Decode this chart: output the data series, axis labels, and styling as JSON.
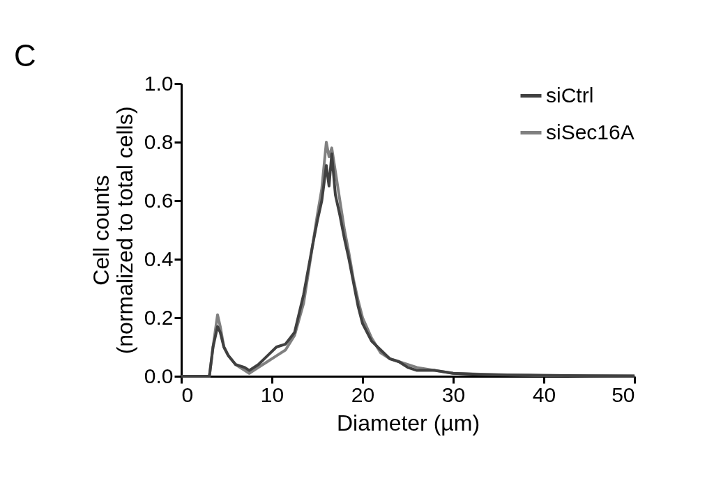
{
  "chart_data": {
    "type": "line",
    "xlabel": "Diameter (µm)",
    "ylabel": "Cell counts (normalized to total cells)",
    "annotations": [
      "C"
    ],
    "xlim": [
      0,
      50
    ],
    "xticks": [
      0,
      10,
      20,
      30,
      40,
      50
    ],
    "ylim": [
      0,
      1.0
    ],
    "yticks": [
      {
        "value": 0,
        "label": "0.0"
      },
      {
        "value": 0.2,
        "label": "0.2"
      },
      {
        "value": 0.4,
        "label": "0.4"
      },
      {
        "value": 0.6,
        "label": "0.6"
      },
      {
        "value": 0.8,
        "label": "0.8"
      },
      {
        "value": 1.0,
        "label": "1.0"
      }
    ],
    "grid": false,
    "legend": "top right",
    "marker": "none",
    "line_style": "solid",
    "series": [
      {
        "name": "siSec16A",
        "color": "#808080",
        "x": [
          0,
          3.1,
          3.5,
          4.0,
          4.3,
          4.7,
          5.2,
          6.0,
          7.0,
          7.5,
          8.5,
          9.5,
          10.5,
          11.5,
          12.5,
          13.5,
          14.5,
          15.0,
          15.5,
          16.0,
          16.3,
          16.6,
          17.0,
          17.5,
          18.0,
          18.5,
          19.0,
          19.5,
          20.0,
          21.0,
          22.0,
          23.0,
          24.0,
          25.0,
          26.0,
          28.0,
          30.0,
          33.0,
          36.0,
          40.0,
          45.0,
          50.0
        ],
        "values": [
          0,
          0,
          0.1,
          0.21,
          0.17,
          0.1,
          0.07,
          0.04,
          0.02,
          0.01,
          0.03,
          0.05,
          0.07,
          0.09,
          0.14,
          0.25,
          0.45,
          0.55,
          0.64,
          0.8,
          0.75,
          0.78,
          0.7,
          0.6,
          0.5,
          0.42,
          0.33,
          0.26,
          0.2,
          0.13,
          0.08,
          0.06,
          0.05,
          0.04,
          0.03,
          0.02,
          0.01,
          0.007,
          0.005,
          0.003,
          0.002,
          0.001
        ]
      },
      {
        "name": "siCtrl",
        "color": "#404040",
        "x": [
          0,
          3.1,
          3.5,
          4.0,
          4.3,
          4.7,
          5.2,
          6.0,
          7.0,
          7.5,
          8.5,
          9.5,
          10.5,
          11.5,
          12.5,
          13.5,
          14.5,
          15.0,
          15.5,
          16.0,
          16.3,
          16.6,
          17.0,
          17.5,
          18.0,
          18.5,
          19.0,
          19.5,
          20.0,
          21.0,
          22.0,
          23.0,
          24.0,
          25.0,
          26.0,
          28.0,
          30.0,
          33.0,
          36.0,
          40.0,
          45.0,
          50.0
        ],
        "values": [
          0,
          0,
          0.1,
          0.17,
          0.15,
          0.1,
          0.07,
          0.04,
          0.03,
          0.02,
          0.04,
          0.07,
          0.1,
          0.11,
          0.15,
          0.28,
          0.45,
          0.53,
          0.6,
          0.72,
          0.65,
          0.76,
          0.62,
          0.55,
          0.47,
          0.4,
          0.32,
          0.24,
          0.18,
          0.12,
          0.09,
          0.06,
          0.05,
          0.03,
          0.02,
          0.02,
          0.01,
          0.006,
          0.004,
          0.003,
          0.002,
          0.001
        ]
      }
    ]
  }
}
